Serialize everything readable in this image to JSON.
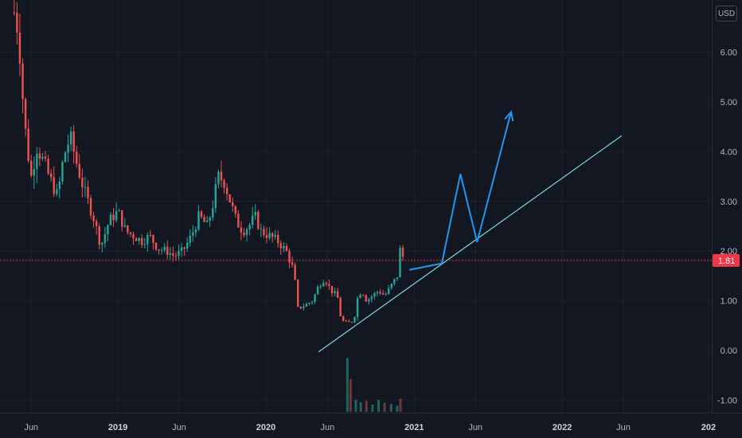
{
  "currency": "USD",
  "last_price": {
    "label": "1.81",
    "value": 1.81,
    "color": "#f23645"
  },
  "colors": {
    "up": "#26a69a",
    "down": "#ef5350",
    "trendline": "#7fd8dc",
    "projection": "#2196f3",
    "background": "#131722",
    "grid": "#1e222d"
  },
  "chart_data": {
    "type": "candlestick",
    "ylim": [
      -1.25,
      7.05
    ],
    "xlim": [
      "2018-03-16",
      "2023-01-05"
    ],
    "y_ticks": [
      6.0,
      5.0,
      4.0,
      3.0,
      2.0,
      1.0,
      0.0,
      -1.0
    ],
    "y_tick_labels": [
      "6.00",
      "5.00",
      "4.00",
      "3.00",
      "2.00",
      "1.00",
      "0.00",
      "-1.00"
    ],
    "x_ticks": [
      {
        "label": "Jun",
        "date": "2018-06-01",
        "bold": false
      },
      {
        "label": "2019",
        "date": "2019-01-01",
        "bold": true
      },
      {
        "label": "Jun",
        "date": "2019-06-01",
        "bold": false
      },
      {
        "label": "2020",
        "date": "2020-01-01",
        "bold": true
      },
      {
        "label": "Jun",
        "date": "2020-06-01",
        "bold": false
      },
      {
        "label": "2021",
        "date": "2021-01-01",
        "bold": true
      },
      {
        "label": "Jun",
        "date": "2021-06-01",
        "bold": false
      },
      {
        "label": "2022",
        "date": "2022-01-01",
        "bold": true
      },
      {
        "label": "Jun",
        "date": "2022-06-01",
        "bold": false
      },
      {
        "label": "202",
        "date": "2022-12-28",
        "bold": true
      }
    ],
    "price_path": [
      [
        "2018-04-20",
        6.8
      ],
      [
        "2018-05-01",
        6.4
      ],
      [
        "2018-05-10",
        5.2
      ],
      [
        "2018-05-20",
        4.2
      ],
      [
        "2018-06-01",
        3.5
      ],
      [
        "2018-06-15",
        4.1
      ],
      [
        "2018-07-01",
        3.8
      ],
      [
        "2018-07-20",
        3.4
      ],
      [
        "2018-08-05",
        3.1
      ],
      [
        "2018-08-20",
        3.9
      ],
      [
        "2018-09-05",
        4.3
      ],
      [
        "2018-09-20",
        3.8
      ],
      [
        "2018-10-10",
        3.2
      ],
      [
        "2018-11-01",
        2.7
      ],
      [
        "2018-11-20",
        2.1
      ],
      [
        "2018-12-10",
        2.6
      ],
      [
        "2019-01-01",
        2.8
      ],
      [
        "2019-01-20",
        2.4
      ],
      [
        "2019-02-10",
        2.3
      ],
      [
        "2019-03-01",
        2.2
      ],
      [
        "2019-03-20",
        2.3
      ],
      [
        "2019-04-10",
        2.05
      ],
      [
        "2019-05-01",
        2.0
      ],
      [
        "2019-05-20",
        1.9
      ],
      [
        "2019-06-10",
        2.0
      ],
      [
        "2019-07-01",
        2.3
      ],
      [
        "2019-07-20",
        2.7
      ],
      [
        "2019-08-10",
        2.5
      ],
      [
        "2019-08-25",
        3.0
      ],
      [
        "2019-09-05",
        3.5
      ],
      [
        "2019-09-20",
        3.4
      ],
      [
        "2019-10-05",
        3.0
      ],
      [
        "2019-10-20",
        2.6
      ],
      [
        "2019-11-05",
        2.4
      ],
      [
        "2019-11-20",
        2.5
      ],
      [
        "2019-12-05",
        2.7
      ],
      [
        "2019-12-20",
        2.4
      ],
      [
        "2020-01-10",
        2.3
      ],
      [
        "2020-01-30",
        2.2
      ],
      [
        "2020-02-20",
        2.0
      ],
      [
        "2020-03-10",
        1.6
      ],
      [
        "2020-03-20",
        0.85
      ],
      [
        "2020-04-05",
        0.9
      ],
      [
        "2020-04-25",
        1.0
      ],
      [
        "2020-05-10",
        1.3
      ],
      [
        "2020-05-25",
        1.45
      ],
      [
        "2020-06-10",
        1.2
      ],
      [
        "2020-06-25",
        1.1
      ],
      [
        "2020-07-05",
        0.6
      ],
      [
        "2020-07-20",
        0.55
      ],
      [
        "2020-08-05",
        0.6
      ],
      [
        "2020-08-15",
        1.1
      ],
      [
        "2020-08-25",
        1.2
      ],
      [
        "2020-09-05",
        1.0
      ],
      [
        "2020-09-20",
        1.1
      ],
      [
        "2020-10-05",
        1.2
      ],
      [
        "2020-10-20",
        1.1
      ],
      [
        "2020-11-05",
        1.3
      ],
      [
        "2020-11-20",
        1.5
      ],
      [
        "2020-11-28",
        2.1
      ],
      [
        "2020-12-05",
        1.85
      ]
    ],
    "trendline": {
      "from": [
        "2020-05-10",
        -0.03
      ],
      "to": [
        "2022-05-28",
        4.32
      ]
    },
    "projection_path": [
      [
        "2020-12-20",
        1.62
      ],
      [
        "2021-03-10",
        1.75
      ],
      [
        "2021-04-25",
        3.55
      ],
      [
        "2021-06-05",
        2.18
      ],
      [
        "2021-08-28",
        4.8
      ]
    ],
    "volume": [
      [
        "2020-07-20",
        0.9
      ],
      [
        "2020-07-28",
        0.55
      ],
      [
        "2020-08-10",
        0.2
      ],
      [
        "2020-08-22",
        0.16
      ],
      [
        "2020-09-05",
        0.18
      ],
      [
        "2020-09-20",
        0.12
      ],
      [
        "2020-10-05",
        0.2
      ],
      [
        "2020-10-20",
        0.15
      ],
      [
        "2020-11-05",
        0.13
      ],
      [
        "2020-11-20",
        0.1
      ],
      [
        "2020-11-28",
        0.22
      ]
    ]
  }
}
